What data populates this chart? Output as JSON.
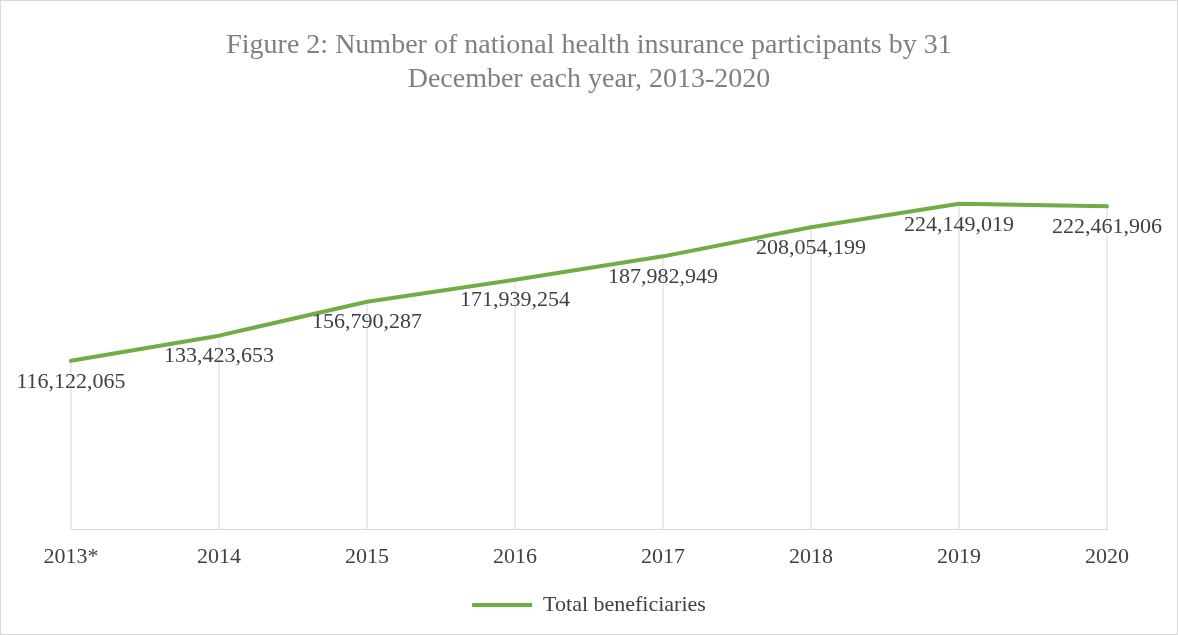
{
  "chart_data": {
    "type": "line",
    "title": "Figure 2: Number of national health insurance participants by 31 December each year, 2013-2020",
    "categories": [
      "2013*",
      "2014",
      "2015",
      "2016",
      "2017",
      "2018",
      "2019",
      "2020"
    ],
    "series": [
      {
        "name": "Total beneficiaries",
        "color": "#70ad47",
        "values": [
          116122065,
          133423653,
          156790287,
          171939254,
          187982949,
          208054199,
          224149019,
          222461906
        ],
        "value_labels": [
          "116,122,065",
          "133,423,653",
          "156,790,287",
          "171,939,254",
          "187,982,949",
          "208,054,199",
          "224,149,019",
          "222,461,906"
        ]
      }
    ],
    "legend": "bottom",
    "marker": "none",
    "grid": "x"
  }
}
